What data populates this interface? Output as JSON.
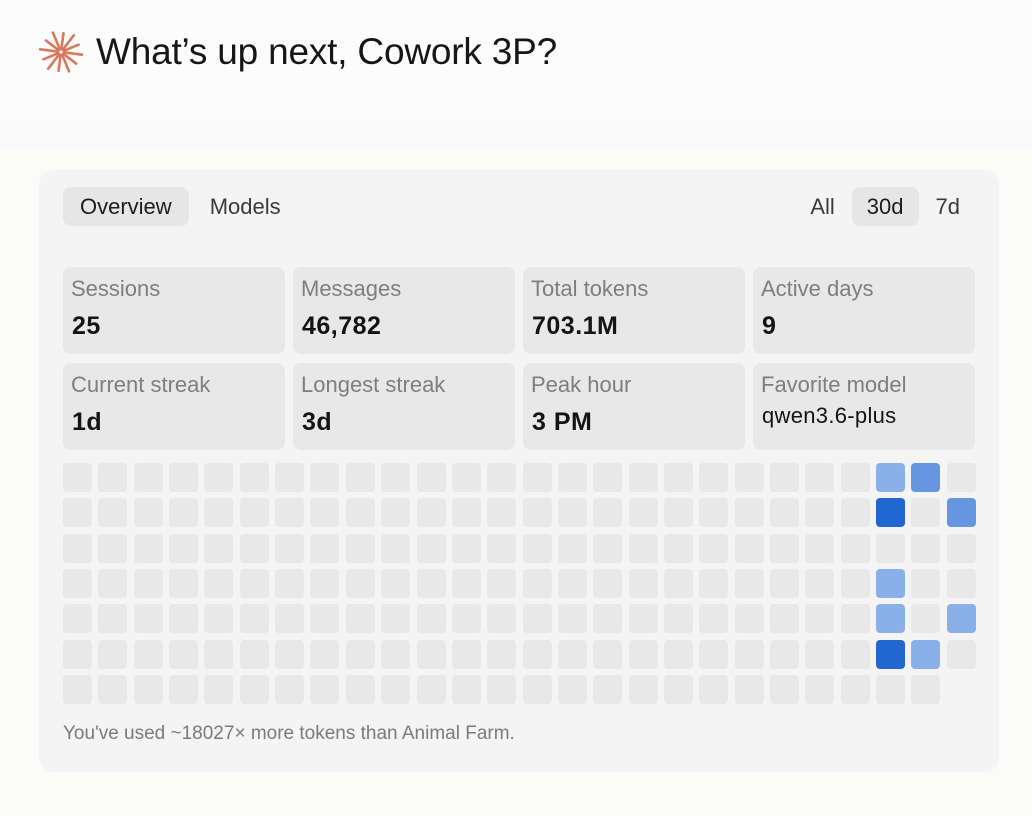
{
  "header": {
    "greeting": "What’s up next, Cowork 3P?",
    "icon": "asterisk-spark-icon",
    "icon_color": "#d9795a"
  },
  "tabs": [
    {
      "label": "Overview",
      "active": true
    },
    {
      "label": "Models",
      "active": false
    }
  ],
  "ranges": [
    {
      "label": "All",
      "active": false
    },
    {
      "label": "30d",
      "active": true
    },
    {
      "label": "7d",
      "active": false
    }
  ],
  "stats": [
    {
      "label": "Sessions",
      "value": "25"
    },
    {
      "label": "Messages",
      "value": "46,782"
    },
    {
      "label": "Total tokens",
      "value": "703.1M"
    },
    {
      "label": "Active days",
      "value": "9"
    },
    {
      "label": "Current streak",
      "value": "1d"
    },
    {
      "label": "Longest streak",
      "value": "3d"
    },
    {
      "label": "Peak hour",
      "value": "3 PM"
    },
    {
      "label": "Favorite model",
      "value": "qwen3.6-plus"
    }
  ],
  "heatmap": {
    "columns": 26,
    "rows": 7,
    "last_column_rows": 6,
    "levels": {
      "0": "#e8e8e8",
      "1": "#8ab0ea",
      "2": "#6596e1",
      "3": "#2266d0"
    },
    "active_cells": [
      {
        "col": 23,
        "row": 0,
        "level": 1
      },
      {
        "col": 24,
        "row": 0,
        "level": 2
      },
      {
        "col": 23,
        "row": 1,
        "level": 3
      },
      {
        "col": 25,
        "row": 1,
        "level": 2
      },
      {
        "col": 23,
        "row": 3,
        "level": 1
      },
      {
        "col": 23,
        "row": 4,
        "level": 1
      },
      {
        "col": 25,
        "row": 4,
        "level": 1
      },
      {
        "col": 23,
        "row": 5,
        "level": 3
      },
      {
        "col": 24,
        "row": 5,
        "level": 1
      }
    ]
  },
  "footnote": "You've used ~18027× more tokens than Animal Farm."
}
